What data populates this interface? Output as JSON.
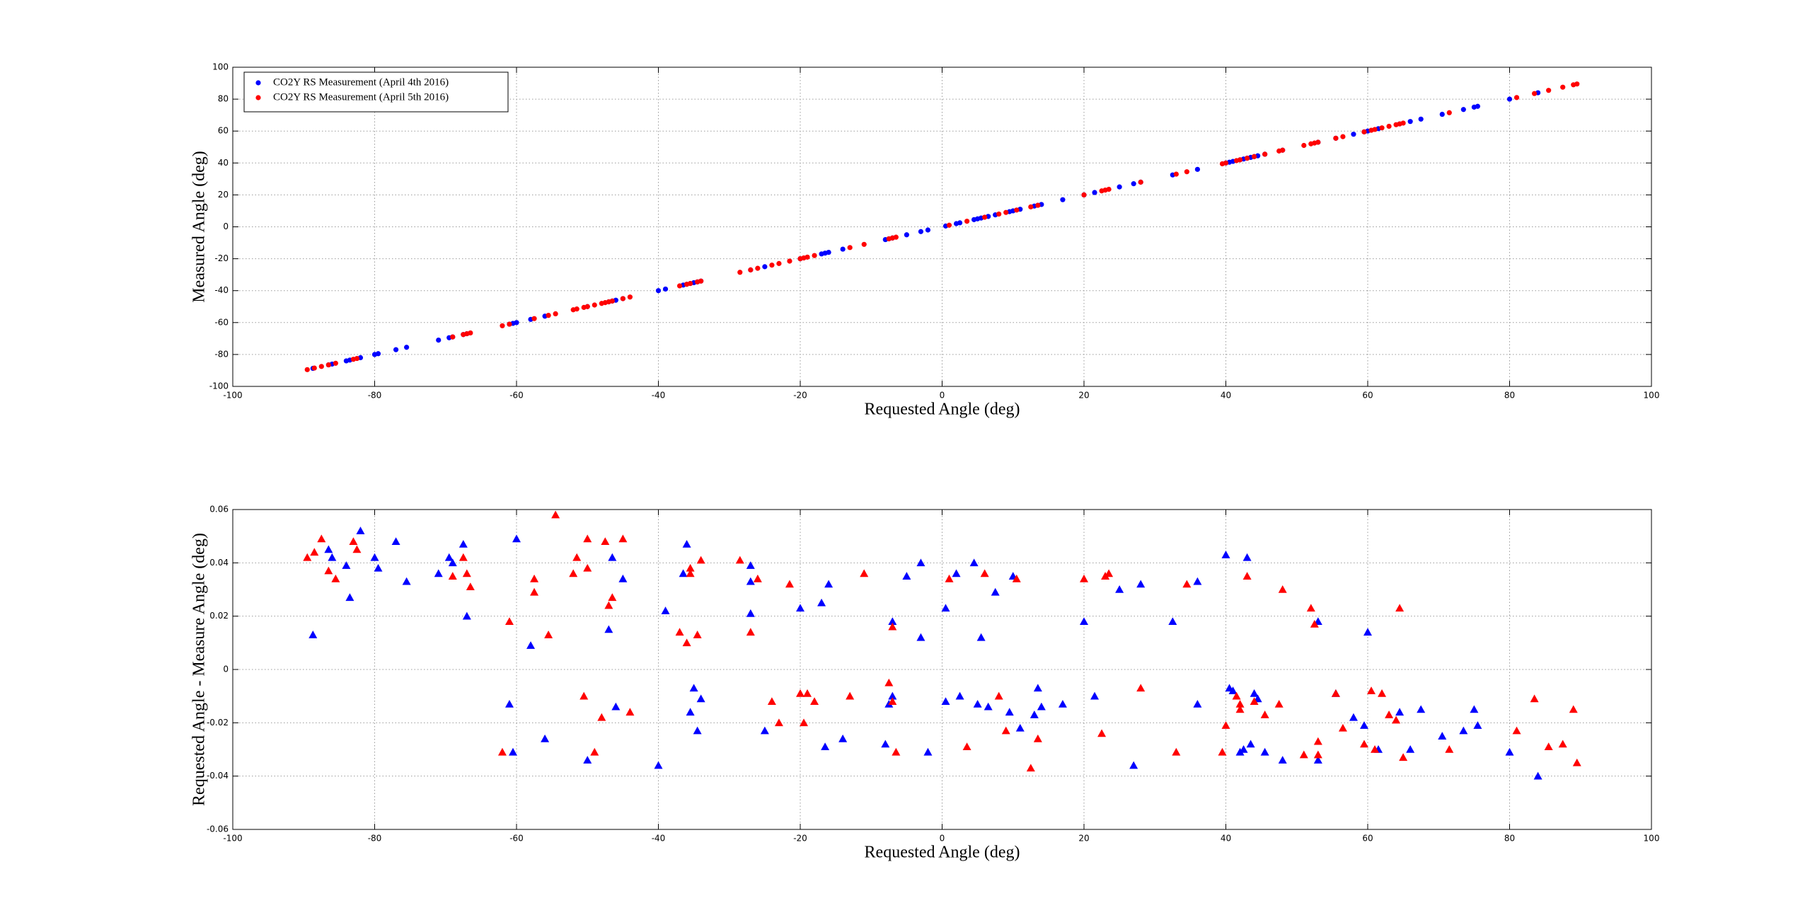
{
  "chart_data": [
    {
      "type": "scatter",
      "xlabel": "Requested Angle (deg)",
      "ylabel": "Measured Angle (deg)",
      "xlim": [
        -100,
        100
      ],
      "ylim": [
        -100,
        100
      ],
      "xticks": [
        -100,
        -80,
        -60,
        -40,
        -20,
        0,
        20,
        40,
        60,
        80,
        100
      ],
      "yticks": [
        -100,
        -80,
        -60,
        -40,
        -20,
        0,
        20,
        40,
        60,
        80,
        100
      ],
      "grid": true,
      "legend": "upper left",
      "series": [
        {
          "name": "CO2Y RS Measurement (April 4th 2016)",
          "color": "#0000ff",
          "marker": "o",
          "x": [
            -88.7,
            -86.5,
            -86,
            -84,
            -83.5,
            -82,
            -80,
            -79.5,
            -77,
            -75.5,
            -71,
            -69.5,
            -69,
            -67.5,
            -67,
            -61,
            -60.5,
            -60,
            -58,
            -56,
            -50,
            -47,
            -46.5,
            -46,
            -45,
            -40,
            -39,
            -36.5,
            -36,
            -35.5,
            -35,
            -34.5,
            -34,
            -27,
            -25,
            -20,
            -17,
            -16.5,
            -16,
            -14,
            -8,
            -7.5,
            -7,
            -5,
            -3,
            -2,
            0.5,
            2,
            2.5,
            4.5,
            5,
            5.5,
            6.5,
            7.5,
            9.5,
            10,
            11,
            13,
            13.5,
            14,
            17,
            20,
            21.5,
            25,
            27,
            28,
            32.5,
            36,
            40,
            40.5,
            41,
            42,
            42.5,
            43,
            43.5,
            44,
            44.5,
            45.5,
            48,
            53,
            55.5,
            58,
            59.5,
            60,
            61.5,
            64.5,
            66,
            67.5,
            70.5,
            73.5,
            75,
            75.5,
            80,
            84
          ],
          "values": [
            -88.7,
            -86.5,
            -86,
            -84,
            -83.5,
            -82,
            -80,
            -79.5,
            -77,
            -75.5,
            -71,
            -69.5,
            -69,
            -67.5,
            -67,
            -61,
            -60.5,
            -60,
            -58,
            -56,
            -50,
            -47,
            -46.5,
            -46,
            -45,
            -40,
            -39,
            -36.5,
            -36,
            -35.5,
            -35,
            -34.5,
            -34,
            -27,
            -25,
            -20,
            -17,
            -16.5,
            -16,
            -14,
            -8,
            -7.5,
            -7,
            -5,
            -3,
            -2,
            0.5,
            2,
            2.5,
            4.5,
            5,
            5.5,
            6.5,
            7.5,
            9.5,
            10,
            11,
            13,
            13.5,
            14,
            17,
            20,
            21.5,
            25,
            27,
            28,
            32.5,
            36,
            40,
            40.5,
            41,
            42,
            42.5,
            43,
            43.5,
            44,
            44.5,
            45.5,
            48,
            53,
            55.5,
            58,
            59.5,
            60,
            61.5,
            64.5,
            66,
            67.5,
            70.5,
            73.5,
            75,
            75.5,
            80,
            84
          ]
        },
        {
          "name": "CO2Y RS Measurement (April 5th 2016)",
          "color": "#ff0000",
          "marker": "o",
          "x": [
            -89.5,
            -88.5,
            -87.5,
            -86.5,
            -85.5,
            -83,
            -82.5,
            -69,
            -67.5,
            -67,
            -66.5,
            -62,
            -61,
            -57.5,
            -55.5,
            -54.5,
            -52,
            -51.5,
            -50.5,
            -50,
            -49,
            -48,
            -47.5,
            -47,
            -46.5,
            -45,
            -44,
            -37,
            -36,
            -35.5,
            -34.5,
            -34,
            -28.5,
            -27,
            -26,
            -24,
            -23,
            -21.5,
            -20,
            -19.5,
            -19,
            -18,
            -13,
            -11,
            -7.5,
            -7,
            -6.5,
            1,
            3.5,
            6,
            8,
            9,
            10.5,
            12.5,
            13.5,
            20,
            22.5,
            23,
            23.5,
            28,
            33,
            34.5,
            39.5,
            40,
            41.5,
            42,
            43,
            44,
            45.5,
            47.5,
            48,
            51,
            52,
            52.5,
            53,
            55.5,
            56.5,
            59.5,
            60.5,
            61,
            62,
            63,
            64,
            64.5,
            65,
            71.5,
            81,
            83.5,
            85.5,
            87.5,
            89,
            89.5
          ],
          "values": [
            -89.5,
            -88.5,
            -87.5,
            -86.5,
            -85.5,
            -83,
            -82.5,
            -69,
            -67.5,
            -67,
            -66.5,
            -62,
            -61,
            -57.5,
            -55.5,
            -54.5,
            -52,
            -51.5,
            -50.5,
            -50,
            -49,
            -48,
            -47.5,
            -47,
            -46.5,
            -45,
            -44,
            -37,
            -36,
            -35.5,
            -34.5,
            -34,
            -28.5,
            -27,
            -26,
            -24,
            -23,
            -21.5,
            -20,
            -19.5,
            -19,
            -18,
            -13,
            -11,
            -7.5,
            -7,
            -6.5,
            1,
            3.5,
            6,
            8,
            9,
            10.5,
            12.5,
            13.5,
            20,
            22.5,
            23,
            23.5,
            28,
            33,
            34.5,
            39.5,
            40,
            41.5,
            42,
            43,
            44,
            45.5,
            47.5,
            48,
            51,
            52,
            52.5,
            53,
            55.5,
            56.5,
            59.5,
            60.5,
            61,
            62,
            63,
            64,
            64.5,
            65,
            71.5,
            81,
            83.5,
            85.5,
            87.5,
            89,
            89.5
          ]
        }
      ]
    },
    {
      "type": "scatter",
      "xlabel": "Requested Angle (deg)",
      "ylabel": "Requested Angle - Measure Angle (deg)",
      "xlim": [
        -100,
        100
      ],
      "ylim": [
        -0.06,
        0.06
      ],
      "xticks": [
        -100,
        -80,
        -60,
        -40,
        -20,
        0,
        20,
        40,
        60,
        80,
        100
      ],
      "yticks": [
        -0.06,
        -0.04,
        -0.02,
        0,
        0.02,
        0.04,
        0.06
      ],
      "grid": true,
      "series": [
        {
          "color": "#0000ff",
          "marker": "^",
          "x": [
            -88.7,
            -86.5,
            -86,
            -84,
            -83.5,
            -82,
            -80,
            -79.5,
            -77,
            -75.5,
            -71,
            -69.5,
            -69,
            -67.5,
            -67,
            -61,
            -60.5,
            -60,
            -58,
            -56,
            -50,
            -47,
            -46.5,
            -46,
            -45,
            -40,
            -39,
            -36.5,
            -36,
            -35.5,
            -35,
            -34.5,
            -34,
            -27,
            -27,
            -27,
            -25,
            -20,
            -17,
            -16.5,
            -16,
            -14,
            -8,
            -7.5,
            -7,
            -7,
            -5,
            -3,
            -3,
            -2,
            0.5,
            0.5,
            2,
            2.5,
            4.5,
            5,
            5.5,
            6.5,
            7.5,
            9.5,
            10,
            11,
            13,
            13.5,
            14,
            17,
            20,
            21.5,
            25,
            27,
            28,
            32.5,
            36,
            36,
            40,
            40.5,
            41,
            42,
            42.5,
            43,
            43.5,
            44,
            44.5,
            45.5,
            48,
            53,
            53,
            55.5,
            58,
            59.5,
            60,
            61.5,
            64.5,
            66,
            67.5,
            70.5,
            73.5,
            75,
            75.5,
            80,
            84
          ],
          "values": [
            0.013,
            0.045,
            0.042,
            0.039,
            0.027,
            0.052,
            0.042,
            0.038,
            0.048,
            0.033,
            0.036,
            0.042,
            0.04,
            0.047,
            0.02,
            -0.013,
            -0.031,
            0.049,
            0.009,
            -0.026,
            -0.034,
            0.015,
            0.042,
            -0.014,
            0.034,
            -0.036,
            0.022,
            0.036,
            0.047,
            -0.016,
            -0.007,
            -0.023,
            -0.011,
            0.033,
            0.039,
            0.021,
            -0.023,
            0.023,
            0.025,
            -0.029,
            0.032,
            -0.026,
            -0.028,
            -0.013,
            -0.01,
            0.018,
            0.035,
            0.04,
            0.012,
            -0.031,
            0.023,
            -0.012,
            0.036,
            -0.01,
            0.04,
            -0.013,
            0.012,
            -0.014,
            0.029,
            -0.016,
            0.035,
            -0.022,
            -0.017,
            -0.007,
            -0.014,
            -0.013,
            0.018,
            -0.01,
            0.03,
            -0.036,
            0.032,
            0.018,
            0.033,
            -0.013,
            0.043,
            -0.007,
            -0.008,
            -0.031,
            -0.03,
            0.042,
            -0.028,
            -0.009,
            -0.011,
            -0.031,
            -0.034,
            0.018,
            -0.034,
            -0.009,
            -0.018,
            -0.021,
            0.014,
            -0.03,
            -0.016,
            -0.03,
            -0.015,
            -0.025,
            -0.023,
            -0.015,
            -0.021,
            -0.031,
            -0.04
          ]
        },
        {
          "color": "#ff0000",
          "marker": "^",
          "x": [
            -89.5,
            -88.5,
            -87.5,
            -86.5,
            -85.5,
            -83,
            -82.5,
            -69,
            -67.5,
            -67,
            -66.5,
            -62,
            -61,
            -57.5,
            -57.5,
            -55.5,
            -54.5,
            -52,
            -51.5,
            -50.5,
            -50,
            -50,
            -49,
            -48,
            -47.5,
            -47,
            -46.5,
            -45,
            -44,
            -37,
            -36,
            -35.5,
            -35.5,
            -34.5,
            -34,
            -28.5,
            -27,
            -26,
            -24,
            -23,
            -21.5,
            -20,
            -19.5,
            -19,
            -18,
            -13,
            -11,
            -7.5,
            -7,
            -7,
            -6.5,
            1,
            3.5,
            6,
            8,
            9,
            10.5,
            12.5,
            13.5,
            20,
            22.5,
            23,
            23.5,
            28,
            33,
            34.5,
            39.5,
            40,
            41.5,
            42,
            42,
            43,
            44,
            45.5,
            47.5,
            48,
            51,
            52,
            52.5,
            53,
            53,
            55.5,
            56.5,
            59.5,
            60.5,
            61,
            62,
            63,
            64,
            64.5,
            65,
            71.5,
            81,
            83.5,
            85.5,
            87.5,
            89,
            89.5
          ],
          "values": [
            0.042,
            0.044,
            0.049,
            0.037,
            0.034,
            0.048,
            0.045,
            0.035,
            0.042,
            0.036,
            0.031,
            -0.031,
            0.018,
            0.034,
            0.029,
            0.013,
            0.058,
            0.036,
            0.042,
            -0.01,
            0.049,
            0.038,
            -0.031,
            -0.018,
            0.048,
            0.024,
            0.027,
            0.049,
            -0.016,
            0.014,
            0.01,
            0.038,
            0.036,
            0.013,
            0.041,
            0.041,
            0.014,
            0.034,
            -0.012,
            -0.02,
            0.032,
            -0.009,
            -0.02,
            -0.009,
            -0.012,
            -0.01,
            0.036,
            -0.005,
            -0.012,
            0.016,
            -0.031,
            0.034,
            -0.029,
            0.036,
            -0.01,
            -0.023,
            0.034,
            -0.037,
            -0.026,
            0.034,
            -0.024,
            0.035,
            0.036,
            -0.007,
            -0.031,
            0.032,
            -0.031,
            -0.021,
            -0.01,
            -0.013,
            -0.015,
            0.035,
            -0.012,
            -0.017,
            -0.013,
            0.03,
            -0.032,
            0.023,
            0.017,
            -0.027,
            -0.032,
            -0.009,
            -0.022,
            -0.028,
            -0.008,
            -0.03,
            -0.009,
            -0.017,
            -0.019,
            0.023,
            -0.033,
            -0.03,
            -0.023,
            -0.011,
            -0.029,
            -0.028,
            -0.015,
            -0.035
          ]
        }
      ]
    }
  ]
}
